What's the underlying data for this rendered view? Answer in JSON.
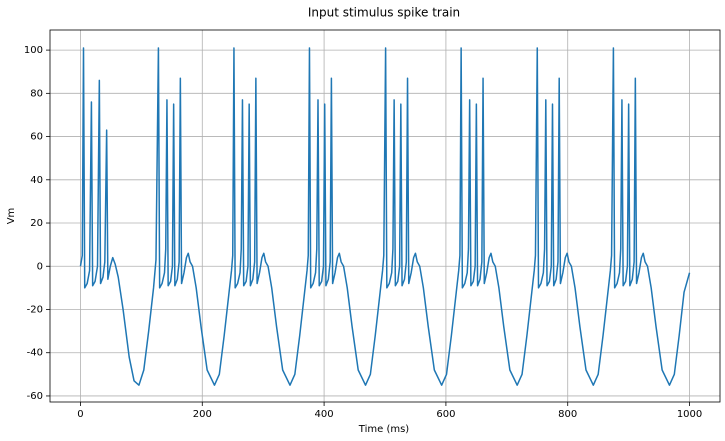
{
  "chart_data": {
    "type": "line",
    "title": "Input stimulus spike train",
    "xlabel": "Time (ms)",
    "ylabel": "Vm",
    "color": "#1f77b4",
    "grid": true,
    "xlim": [
      -50,
      1050
    ],
    "ylim": [
      -62.8,
      109.3
    ],
    "xticks": [
      0,
      200,
      400,
      600,
      800,
      1000
    ],
    "yticks": [
      -60,
      -40,
      -20,
      0,
      20,
      40,
      60,
      80,
      100
    ],
    "x": [
      0,
      3,
      5,
      7,
      11,
      15,
      18,
      20,
      24,
      28,
      31,
      33,
      37,
      40,
      43,
      45,
      49,
      53,
      57,
      62,
      70,
      80,
      88,
      96,
      104,
      112,
      120,
      124,
      128,
      130,
      134,
      138,
      140,
      142,
      144,
      148,
      151,
      153,
      155,
      159,
      162,
      164,
      166,
      170,
      174,
      177,
      180,
      184,
      190,
      198,
      208,
      220,
      228,
      236,
      244,
      248,
      250,
      252,
      254,
      258,
      262,
      264,
      266,
      268,
      272,
      275,
      277,
      279,
      283,
      286,
      288,
      290,
      294,
      298,
      301,
      304,
      308,
      314,
      322,
      332,
      344,
      352,
      360,
      368,
      372,
      374,
      376,
      378,
      382,
      386,
      388,
      390,
      392,
      396,
      399,
      401,
      403,
      407,
      410,
      412,
      414,
      418,
      422,
      425,
      428,
      432,
      438,
      446,
      456,
      468,
      476,
      484,
      492,
      496,
      498,
      501,
      503,
      507,
      511,
      513,
      515,
      517,
      521,
      524,
      526,
      528,
      532,
      535,
      537,
      539,
      543,
      547,
      550,
      553,
      557,
      563,
      571,
      581,
      593,
      601,
      609,
      617,
      621,
      623,
      625,
      627,
      631,
      635,
      637,
      639,
      641,
      645,
      648,
      650,
      652,
      656,
      659,
      661,
      663,
      667,
      671,
      674,
      677,
      681,
      687,
      695,
      705,
      717,
      725,
      733,
      741,
      745,
      747,
      750,
      752,
      756,
      760,
      762,
      764,
      766,
      770,
      773,
      775,
      777,
      781,
      784,
      786,
      788,
      792,
      796,
      799,
      802,
      806,
      812,
      820,
      830,
      842,
      850,
      858,
      866,
      870,
      872,
      875,
      877,
      881,
      885,
      887,
      889,
      891,
      895,
      898,
      900,
      902,
      906,
      909,
      911,
      913,
      917,
      921,
      924,
      927,
      931,
      937,
      945,
      955,
      967,
      975,
      983,
      991,
      1000
    ],
    "values": [
      0,
      5,
      101,
      -10,
      -8,
      -2,
      76,
      -9,
      -7,
      0,
      86,
      -8,
      -5,
      2,
      63,
      -6,
      0,
      4,
      1,
      -5,
      -20,
      -42,
      -53,
      -55,
      -48,
      -30,
      -10,
      3,
      101,
      -10,
      -8,
      -3,
      8,
      77,
      -9,
      -7,
      0,
      75,
      -9,
      -6,
      2,
      87,
      -8,
      -3,
      4,
      6,
      2,
      0,
      -10,
      -28,
      -48,
      -55,
      -50,
      -32,
      -12,
      -2,
      5,
      101,
      -10,
      -8,
      -3,
      8,
      77,
      -9,
      -7,
      0,
      75,
      -9,
      -6,
      2,
      87,
      -8,
      -3,
      4,
      6,
      2,
      0,
      -10,
      -28,
      -48,
      -55,
      -50,
      -32,
      -12,
      -2,
      5,
      101,
      -10,
      -8,
      -3,
      8,
      77,
      -9,
      -7,
      0,
      75,
      -9,
      -6,
      2,
      87,
      -8,
      -3,
      4,
      6,
      2,
      0,
      -10,
      -28,
      -48,
      -55,
      -50,
      -32,
      -12,
      -2,
      5,
      101,
      -10,
      -8,
      -3,
      8,
      77,
      -9,
      -7,
      0,
      75,
      -9,
      -6,
      2,
      87,
      -8,
      -3,
      4,
      6,
      2,
      0,
      -10,
      -28,
      -48,
      -55,
      -50,
      -32,
      -12,
      -2,
      5,
      101,
      -10,
      -8,
      -3,
      8,
      77,
      -9,
      -7,
      0,
      75,
      -9,
      -6,
      2,
      87,
      -8,
      -3,
      4,
      6,
      2,
      0,
      -10,
      -28,
      -48,
      -55,
      -50,
      -32,
      -12,
      -2,
      5,
      101,
      -10,
      -8,
      -3,
      8,
      77,
      -9,
      -7,
      0,
      75,
      -9,
      -6,
      2,
      87,
      -8,
      -3,
      4,
      6,
      2,
      0,
      -10,
      -28,
      -48,
      -55,
      -50,
      -32,
      -12,
      -2,
      5,
      101,
      -10,
      -8,
      -3,
      8,
      77,
      -9,
      -7,
      0,
      75,
      -9,
      -6,
      2,
      87,
      -8,
      -3,
      4,
      6,
      2,
      0,
      -10,
      -28,
      -48,
      -55,
      -50,
      -32,
      -12,
      -3
    ]
  }
}
